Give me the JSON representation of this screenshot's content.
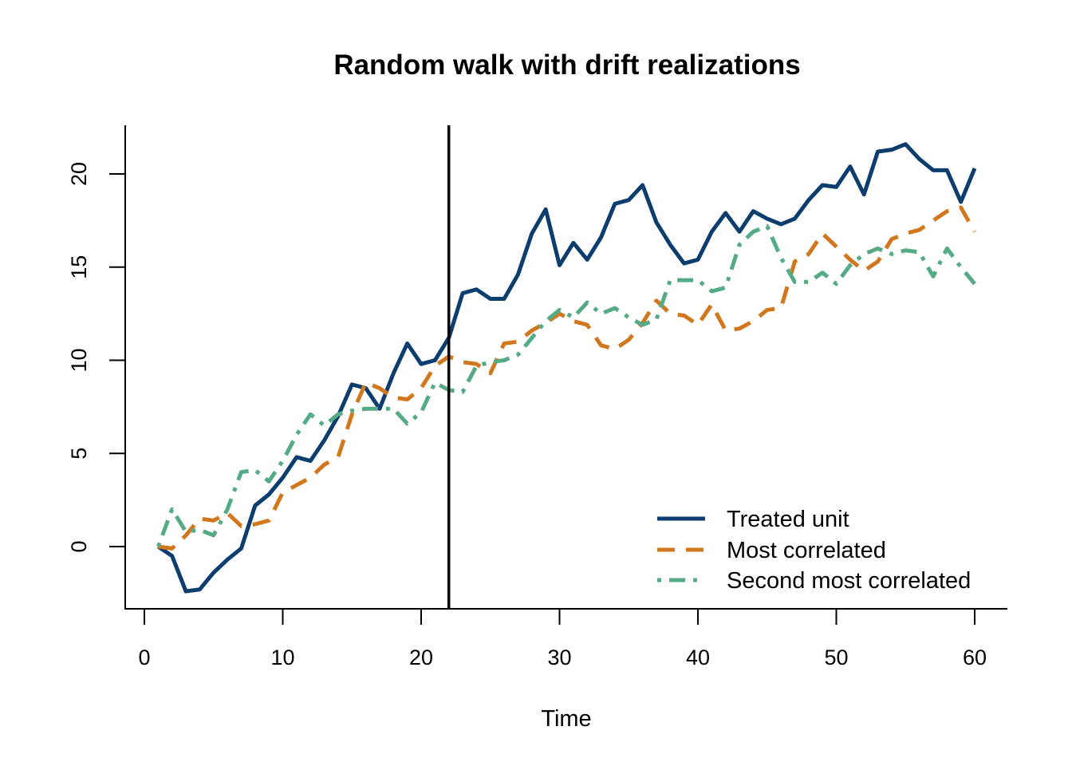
{
  "chart_data": {
    "type": "line",
    "title": "Random walk with drift realizations",
    "xlabel": "Time",
    "ylabel": "",
    "xlim": [
      0,
      60
    ],
    "ylim": [
      -3,
      23
    ],
    "x_ticks": [
      0,
      10,
      20,
      30,
      40,
      50,
      60
    ],
    "y_ticks": [
      0,
      5,
      10,
      15,
      20
    ],
    "vline_x": 22,
    "legend_position": "bottom-right",
    "x": [
      1,
      2,
      3,
      4,
      5,
      6,
      7,
      8,
      9,
      10,
      11,
      12,
      13,
      14,
      15,
      16,
      17,
      18,
      19,
      20,
      21,
      22,
      23,
      24,
      25,
      26,
      27,
      28,
      29,
      30,
      31,
      32,
      33,
      34,
      35,
      36,
      37,
      38,
      39,
      40,
      41,
      42,
      43,
      44,
      45,
      46,
      47,
      48,
      49,
      50,
      51,
      52,
      53,
      54,
      55,
      56,
      57,
      58,
      59,
      60
    ],
    "series": [
      {
        "name": "Treated unit",
        "color": "#0b3d6e",
        "dash": "solid",
        "values": [
          0.0,
          -0.5,
          -2.4,
          -2.3,
          -1.4,
          -0.7,
          -0.1,
          2.2,
          2.8,
          3.7,
          4.8,
          4.6,
          5.7,
          7.0,
          8.7,
          8.5,
          7.4,
          9.3,
          10.9,
          9.8,
          10.0,
          11.2,
          13.6,
          13.8,
          13.3,
          13.3,
          14.6,
          16.8,
          18.1,
          15.1,
          16.3,
          15.4,
          16.6,
          18.4,
          18.6,
          19.4,
          17.4,
          16.2,
          15.2,
          15.4,
          16.9,
          17.9,
          16.9,
          18.0,
          17.6,
          17.3,
          17.6,
          18.6,
          19.4,
          19.3,
          20.4,
          18.9,
          21.2,
          21.3,
          21.6,
          20.8,
          20.2,
          20.2,
          18.5,
          20.3
        ]
      },
      {
        "name": "Most correlated",
        "color": "#d1781f",
        "dash": "dashed",
        "values": [
          0.0,
          -0.1,
          0.6,
          1.5,
          1.4,
          1.8,
          1.1,
          1.2,
          1.4,
          2.9,
          3.3,
          3.7,
          4.4,
          4.8,
          7.1,
          8.8,
          8.5,
          8.0,
          7.9,
          8.5,
          9.7,
          10.2,
          9.9,
          9.8,
          9.3,
          10.9,
          11.0,
          11.6,
          12.0,
          12.5,
          12.1,
          11.9,
          10.8,
          10.6,
          11.1,
          12.0,
          13.2,
          12.5,
          12.4,
          11.9,
          13.0,
          11.6,
          11.7,
          12.1,
          12.7,
          12.8,
          15.3,
          15.7,
          16.8,
          16.1,
          15.4,
          14.8,
          15.3,
          16.5,
          16.8,
          17.0,
          17.5,
          18.0,
          18.2,
          16.9
        ]
      },
      {
        "name": "Second most correlated",
        "color": "#56ab87",
        "dash": "dotdash",
        "values": [
          0.0,
          2.0,
          0.8,
          0.9,
          0.6,
          2.0,
          4.0,
          4.1,
          3.5,
          4.6,
          6.0,
          7.1,
          6.5,
          7.1,
          7.3,
          7.4,
          7.4,
          7.4,
          6.6,
          7.2,
          8.8,
          8.4,
          8.3,
          9.7,
          9.9,
          10.0,
          10.3,
          11.2,
          12.1,
          12.7,
          12.3,
          13.1,
          12.5,
          12.8,
          12.3,
          11.9,
          12.2,
          14.3,
          14.3,
          14.3,
          13.7,
          13.9,
          16.2,
          16.9,
          17.2,
          15.5,
          14.2,
          14.2,
          14.7,
          14.1,
          15.1,
          15.7,
          16.0,
          15.7,
          15.9,
          15.8,
          14.5,
          16.0,
          15.0,
          14.1
        ]
      }
    ]
  }
}
